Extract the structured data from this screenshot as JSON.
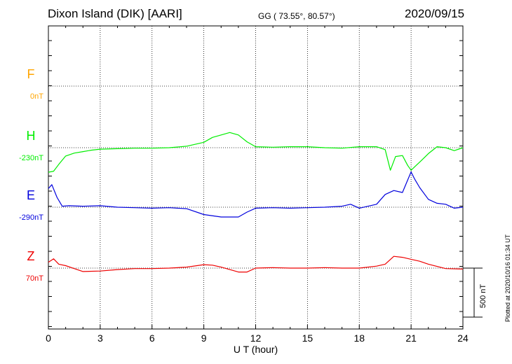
{
  "header": {
    "station": "Dixon Island (DIK)  [AARI]",
    "coords": "GG ( 73.55°,  80.57°)",
    "date": "2020/09/15"
  },
  "footer_note": "Plotted at 2020/10/16 01:34 UT",
  "scale_bar_label": "500 nT",
  "chart_data": {
    "type": "line",
    "xlabel": "U T (hour)",
    "xlim": [
      0,
      24
    ],
    "x_ticks": [
      "0",
      "3",
      "6",
      "9",
      "12",
      "15",
      "18",
      "21",
      "24"
    ],
    "scale_nT": 500,
    "grid": true,
    "series": [
      {
        "name": "F",
        "baseline_label": "0nT",
        "color": "#ffa500",
        "points": []
      },
      {
        "name": "H",
        "baseline_label": "-230nT",
        "color": "#00ee00",
        "points": [
          [
            0,
            -250
          ],
          [
            0.3,
            -240
          ],
          [
            0.6,
            -170
          ],
          [
            1,
            -85
          ],
          [
            1.5,
            -55
          ],
          [
            2,
            -40
          ],
          [
            2.5,
            -25
          ],
          [
            3,
            -15
          ],
          [
            4,
            -10
          ],
          [
            5,
            -5
          ],
          [
            6,
            -5
          ],
          [
            7,
            0
          ],
          [
            8,
            15
          ],
          [
            9,
            55
          ],
          [
            9.5,
            105
          ],
          [
            10,
            130
          ],
          [
            10.5,
            155
          ],
          [
            11,
            130
          ],
          [
            11.5,
            60
          ],
          [
            12,
            10
          ],
          [
            13,
            5
          ],
          [
            14,
            10
          ],
          [
            15,
            10
          ],
          [
            16,
            0
          ],
          [
            17,
            -5
          ],
          [
            18,
            10
          ],
          [
            19,
            10
          ],
          [
            19.5,
            -20
          ],
          [
            19.8,
            -230
          ],
          [
            20.1,
            -90
          ],
          [
            20.5,
            -80
          ],
          [
            20.8,
            -180
          ],
          [
            21,
            -230
          ],
          [
            21.3,
            -180
          ],
          [
            21.6,
            -130
          ],
          [
            22,
            -60
          ],
          [
            22.5,
            10
          ],
          [
            23,
            0
          ],
          [
            23.5,
            -30
          ],
          [
            24,
            0
          ]
        ]
      },
      {
        "name": "E",
        "baseline_label": "-290nT",
        "color": "#0000dd",
        "points": [
          [
            0,
            190
          ],
          [
            0.2,
            230
          ],
          [
            0.5,
            100
          ],
          [
            0.8,
            10
          ],
          [
            1.2,
            15
          ],
          [
            2,
            10
          ],
          [
            3,
            15
          ],
          [
            4,
            0
          ],
          [
            5,
            -5
          ],
          [
            6,
            -10
          ],
          [
            7,
            -5
          ],
          [
            8,
            -15
          ],
          [
            9,
            -75
          ],
          [
            10,
            -100
          ],
          [
            11,
            -100
          ],
          [
            11.5,
            -50
          ],
          [
            12,
            -10
          ],
          [
            13,
            -5
          ],
          [
            14,
            -10
          ],
          [
            15,
            -5
          ],
          [
            16,
            0
          ],
          [
            17,
            10
          ],
          [
            17.5,
            30
          ],
          [
            18,
            -10
          ],
          [
            19,
            30
          ],
          [
            19.5,
            130
          ],
          [
            20,
            170
          ],
          [
            20.5,
            150
          ],
          [
            21,
            360
          ],
          [
            21.2,
            290
          ],
          [
            21.5,
            200
          ],
          [
            22,
            80
          ],
          [
            22.5,
            40
          ],
          [
            23,
            30
          ],
          [
            23.5,
            -10
          ],
          [
            24,
            0
          ]
        ]
      },
      {
        "name": "Z",
        "baseline_label": "70nT",
        "color": "#ee0000",
        "points": [
          [
            0,
            60
          ],
          [
            0.3,
            95
          ],
          [
            0.6,
            40
          ],
          [
            1,
            25
          ],
          [
            2,
            -35
          ],
          [
            3,
            -30
          ],
          [
            4,
            -15
          ],
          [
            5,
            -5
          ],
          [
            6,
            -5
          ],
          [
            7,
            0
          ],
          [
            8,
            10
          ],
          [
            9,
            35
          ],
          [
            9.5,
            30
          ],
          [
            10,
            10
          ],
          [
            11,
            -40
          ],
          [
            11.5,
            -40
          ],
          [
            12,
            0
          ],
          [
            13,
            5
          ],
          [
            14,
            0
          ],
          [
            15,
            0
          ],
          [
            16,
            5
          ],
          [
            17,
            0
          ],
          [
            18,
            0
          ],
          [
            19,
            20
          ],
          [
            19.5,
            40
          ],
          [
            20,
            120
          ],
          [
            20.5,
            110
          ],
          [
            21,
            90
          ],
          [
            21.5,
            70
          ],
          [
            22,
            40
          ],
          [
            23,
            -5
          ],
          [
            24,
            -10
          ]
        ]
      }
    ]
  }
}
